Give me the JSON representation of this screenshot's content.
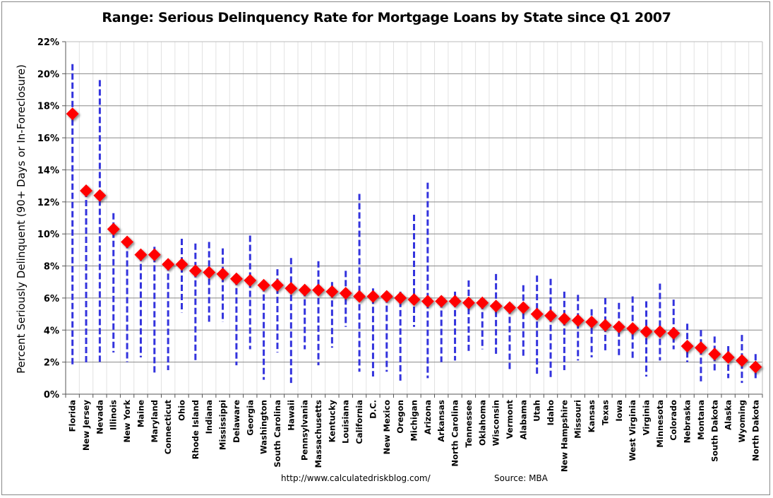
{
  "chart_data": {
    "type": "range-scatter",
    "title": "Range: Serious Delinquency Rate for Mortgage Loans by State since Q1 2007",
    "ylabel": "Percent Seriously Delinquent (90+ Days or In-Foreclosure)",
    "xlabel": "",
    "ylim": [
      0,
      22
    ],
    "yticks": [
      "0%",
      "2%",
      "4%",
      "6%",
      "8%",
      "10%",
      "12%",
      "14%",
      "16%",
      "18%",
      "20%",
      "22%"
    ],
    "grid": true,
    "categories": [
      "Florida",
      "New Jersey",
      "Nevada",
      "Illinois",
      "New York",
      "Maine",
      "Maryland",
      "Connecticut",
      "Ohio",
      "Rhode Island",
      "Indiana",
      "Mississippi",
      "Delaware",
      "Georgia",
      "Washington",
      "South Carolina",
      "Hawaii",
      "Pennsylvania",
      "Massachusetts",
      "Kentucky",
      "Louisiana",
      "California",
      "D.C.",
      "New Mexico",
      "Oregon",
      "Michigan",
      "Arizona",
      "Arkansas",
      "North Carolina",
      "Tennessee",
      "Oklahoma",
      "Wisconsin",
      "Vermont",
      "Alabama",
      "Utah",
      "Idaho",
      "New Hampshire",
      "Missouri",
      "Kansas",
      "Texas",
      "Iowa",
      "West Virginia",
      "Virginia",
      "Minnesota",
      "Colorado",
      "Nebraska",
      "Montana",
      "South Dakota",
      "Alaska",
      "Wyoming",
      "North Dakota"
    ],
    "current": [
      17.5,
      12.7,
      12.4,
      10.3,
      9.5,
      8.7,
      8.7,
      8.1,
      8.1,
      7.7,
      7.6,
      7.5,
      7.2,
      7.1,
      6.8,
      6.8,
      6.6,
      6.5,
      6.5,
      6.4,
      6.3,
      6.1,
      6.1,
      6.1,
      6.0,
      5.9,
      5.8,
      5.8,
      5.8,
      5.7,
      5.7,
      5.5,
      5.4,
      5.4,
      5.0,
      4.9,
      4.7,
      4.6,
      4.5,
      4.3,
      4.2,
      4.1,
      3.9,
      3.9,
      3.8,
      3.0,
      2.9,
      2.5,
      2.3,
      2.1,
      1.7
    ],
    "max": [
      20.6,
      12.7,
      19.6,
      11.3,
      9.5,
      8.7,
      9.2,
      8.1,
      9.7,
      9.4,
      9.5,
      9.1,
      7.2,
      9.9,
      6.8,
      7.8,
      8.5,
      6.5,
      8.3,
      7.0,
      7.7,
      12.5,
      6.6,
      6.1,
      6.4,
      11.2,
      13.2,
      5.8,
      6.4,
      7.1,
      5.7,
      7.5,
      5.4,
      6.8,
      7.4,
      7.2,
      6.4,
      6.2,
      5.3,
      6.0,
      5.7,
      6.1,
      5.8,
      6.9,
      5.9,
      4.4,
      4.0,
      3.6,
      3.0,
      3.7,
      2.5
    ],
    "min": [
      1.8,
      1.9,
      2.0,
      2.6,
      2.0,
      2.3,
      1.2,
      1.5,
      5.1,
      2.1,
      4.5,
      4.5,
      1.8,
      2.8,
      0.9,
      2.6,
      0.7,
      2.8,
      1.8,
      2.9,
      4.2,
      1.4,
      1.1,
      1.4,
      0.8,
      4.2,
      1.0,
      2.0,
      2.1,
      2.7,
      2.8,
      2.4,
      1.4,
      2.4,
      1.2,
      1.0,
      1.5,
      2.1,
      2.3,
      2.6,
      2.3,
      2.2,
      1.1,
      2.1,
      2.8,
      2.0,
      0.8,
      1.4,
      1.0,
      0.7,
      1.0
    ],
    "colors": {
      "marker": "#ff0000",
      "range": "#3333dd",
      "grid": "#888888"
    }
  },
  "footer": {
    "url": "http://www.calculatedriskblog.com/",
    "source": "Source: MBA"
  }
}
